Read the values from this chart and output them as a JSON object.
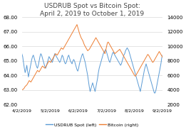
{
  "title": "USDRUB Spot vs Bitcoin Spot:\nApril 2, 2019 to October 1, 2019",
  "title_fontsize": 6.5,
  "left_label": "USDRUB Spot (left)",
  "right_label": "Bitcoin (right)",
  "left_color": "#5b9bd5",
  "right_color": "#ed7d31",
  "ylim_left": [
    62.0,
    68.0
  ],
  "ylim_right": [
    2000,
    14000
  ],
  "yticks_left": [
    62.0,
    63.0,
    64.0,
    65.0,
    66.0,
    67.0,
    68.0
  ],
  "yticks_right": [
    2000,
    4000,
    6000,
    8000,
    10000,
    12000,
    14000
  ],
  "xtick_labels": [
    "4/2/2019",
    "5/2/2019",
    "6/2/2019",
    "7/2/2019",
    "8/2/2019",
    "9/2/2019"
  ],
  "background_color": "#ffffff",
  "grid_color": "#d9d9d9",
  "usdrub": [
    65.5,
    65.3,
    64.9,
    64.5,
    64.2,
    64.4,
    64.7,
    64.3,
    63.9,
    64.2,
    64.5,
    64.8,
    65.1,
    65.3,
    65.4,
    65.2,
    65.0,
    64.8,
    64.6,
    64.5,
    64.7,
    65.0,
    65.3,
    65.5,
    65.4,
    65.2,
    65.0,
    64.8,
    64.6,
    64.5,
    64.7,
    64.9,
    65.1,
    65.3,
    65.2,
    65.1,
    65.0,
    64.9,
    65.1,
    65.3,
    65.5,
    65.4,
    65.3,
    65.2,
    65.1,
    65.0,
    64.9,
    65.0,
    65.2,
    65.4,
    65.3,
    65.1,
    64.9,
    64.8,
    64.9,
    65.1,
    65.3,
    65.4,
    65.2,
    65.0,
    64.9,
    64.8,
    65.0,
    65.1,
    65.0,
    64.8,
    64.6,
    64.4,
    64.3,
    64.5,
    64.8,
    65.0,
    65.2,
    65.4,
    65.5,
    65.3,
    65.1,
    64.9,
    64.6,
    64.3,
    64.0,
    63.6,
    63.2,
    62.9,
    63.1,
    63.3,
    63.5,
    63.3,
    63.1,
    62.9,
    63.2,
    63.5,
    63.8,
    64.2,
    64.5,
    64.7,
    64.9,
    65.1,
    65.3,
    65.5,
    65.6,
    65.7,
    65.8,
    65.6,
    65.4,
    65.2,
    65.0,
    64.9,
    65.1,
    65.3,
    65.5,
    65.6,
    65.5,
    65.4,
    65.3,
    65.2,
    65.1,
    65.0,
    64.9,
    64.8,
    64.7,
    64.8,
    65.0,
    65.2,
    65.4,
    65.5,
    65.7,
    65.8,
    65.9,
    65.8,
    65.7,
    65.5,
    65.3,
    65.1,
    64.9,
    64.7,
    64.5,
    64.3,
    64.1,
    63.9,
    63.7,
    63.5,
    63.3,
    63.1,
    62.9,
    63.2,
    63.5,
    63.8,
    64.1,
    64.4,
    64.6,
    64.8,
    64.6,
    64.4,
    64.2,
    64.0,
    63.8,
    63.6,
    63.4,
    63.2,
    63.0,
    62.8,
    62.8,
    63.0,
    63.3,
    63.6,
    63.9,
    64.2,
    64.5,
    64.8,
    65.2,
    65.4
  ],
  "bitcoin": [
    4100,
    4050,
    4150,
    4300,
    4500,
    4600,
    4700,
    4900,
    5100,
    5300,
    5200,
    5100,
    5300,
    5500,
    5700,
    5900,
    6100,
    6300,
    6500,
    6700,
    6600,
    6500,
    6700,
    6900,
    7100,
    7300,
    7200,
    7100,
    7000,
    7200,
    7400,
    7600,
    7800,
    8000,
    7900,
    7800,
    8000,
    8200,
    8400,
    8600,
    8800,
    9000,
    8900,
    8800,
    9000,
    9200,
    9400,
    9600,
    9800,
    9700,
    9600,
    9800,
    10000,
    10200,
    10400,
    10600,
    10800,
    11000,
    11200,
    11400,
    11600,
    11800,
    12000,
    12200,
    12400,
    12600,
    12800,
    13000,
    12600,
    12200,
    11800,
    11500,
    11200,
    11000,
    10800,
    10500,
    10200,
    10000,
    9800,
    9600,
    9400,
    9500,
    9600,
    9800,
    10000,
    10200,
    10400,
    10600,
    10800,
    11000,
    11200,
    11000,
    10800,
    10600,
    10400,
    10200,
    10000,
    9800,
    9600,
    9400,
    9200,
    9000,
    9500,
    10000,
    10500,
    10600,
    10400,
    10200,
    10000,
    9800,
    9600,
    9400,
    9200,
    9000,
    9100,
    9200,
    9300,
    9400,
    9500,
    9600,
    9400,
    9200,
    9000,
    8800,
    8600,
    8400,
    8200,
    8000,
    7800,
    7600,
    7400,
    7200,
    7000,
    6800,
    6600,
    6400,
    6200,
    6000,
    5900,
    6100,
    6300,
    6500,
    6700,
    6900,
    7100,
    7300,
    7500,
    7700,
    7900,
    8100,
    8300,
    8500,
    8700,
    8900,
    8800,
    8600,
    8400,
    8200,
    8000,
    7800,
    7900,
    8100,
    8300,
    8500,
    8700,
    8900,
    9100,
    9300,
    9100,
    8900,
    8700,
    8500
  ]
}
